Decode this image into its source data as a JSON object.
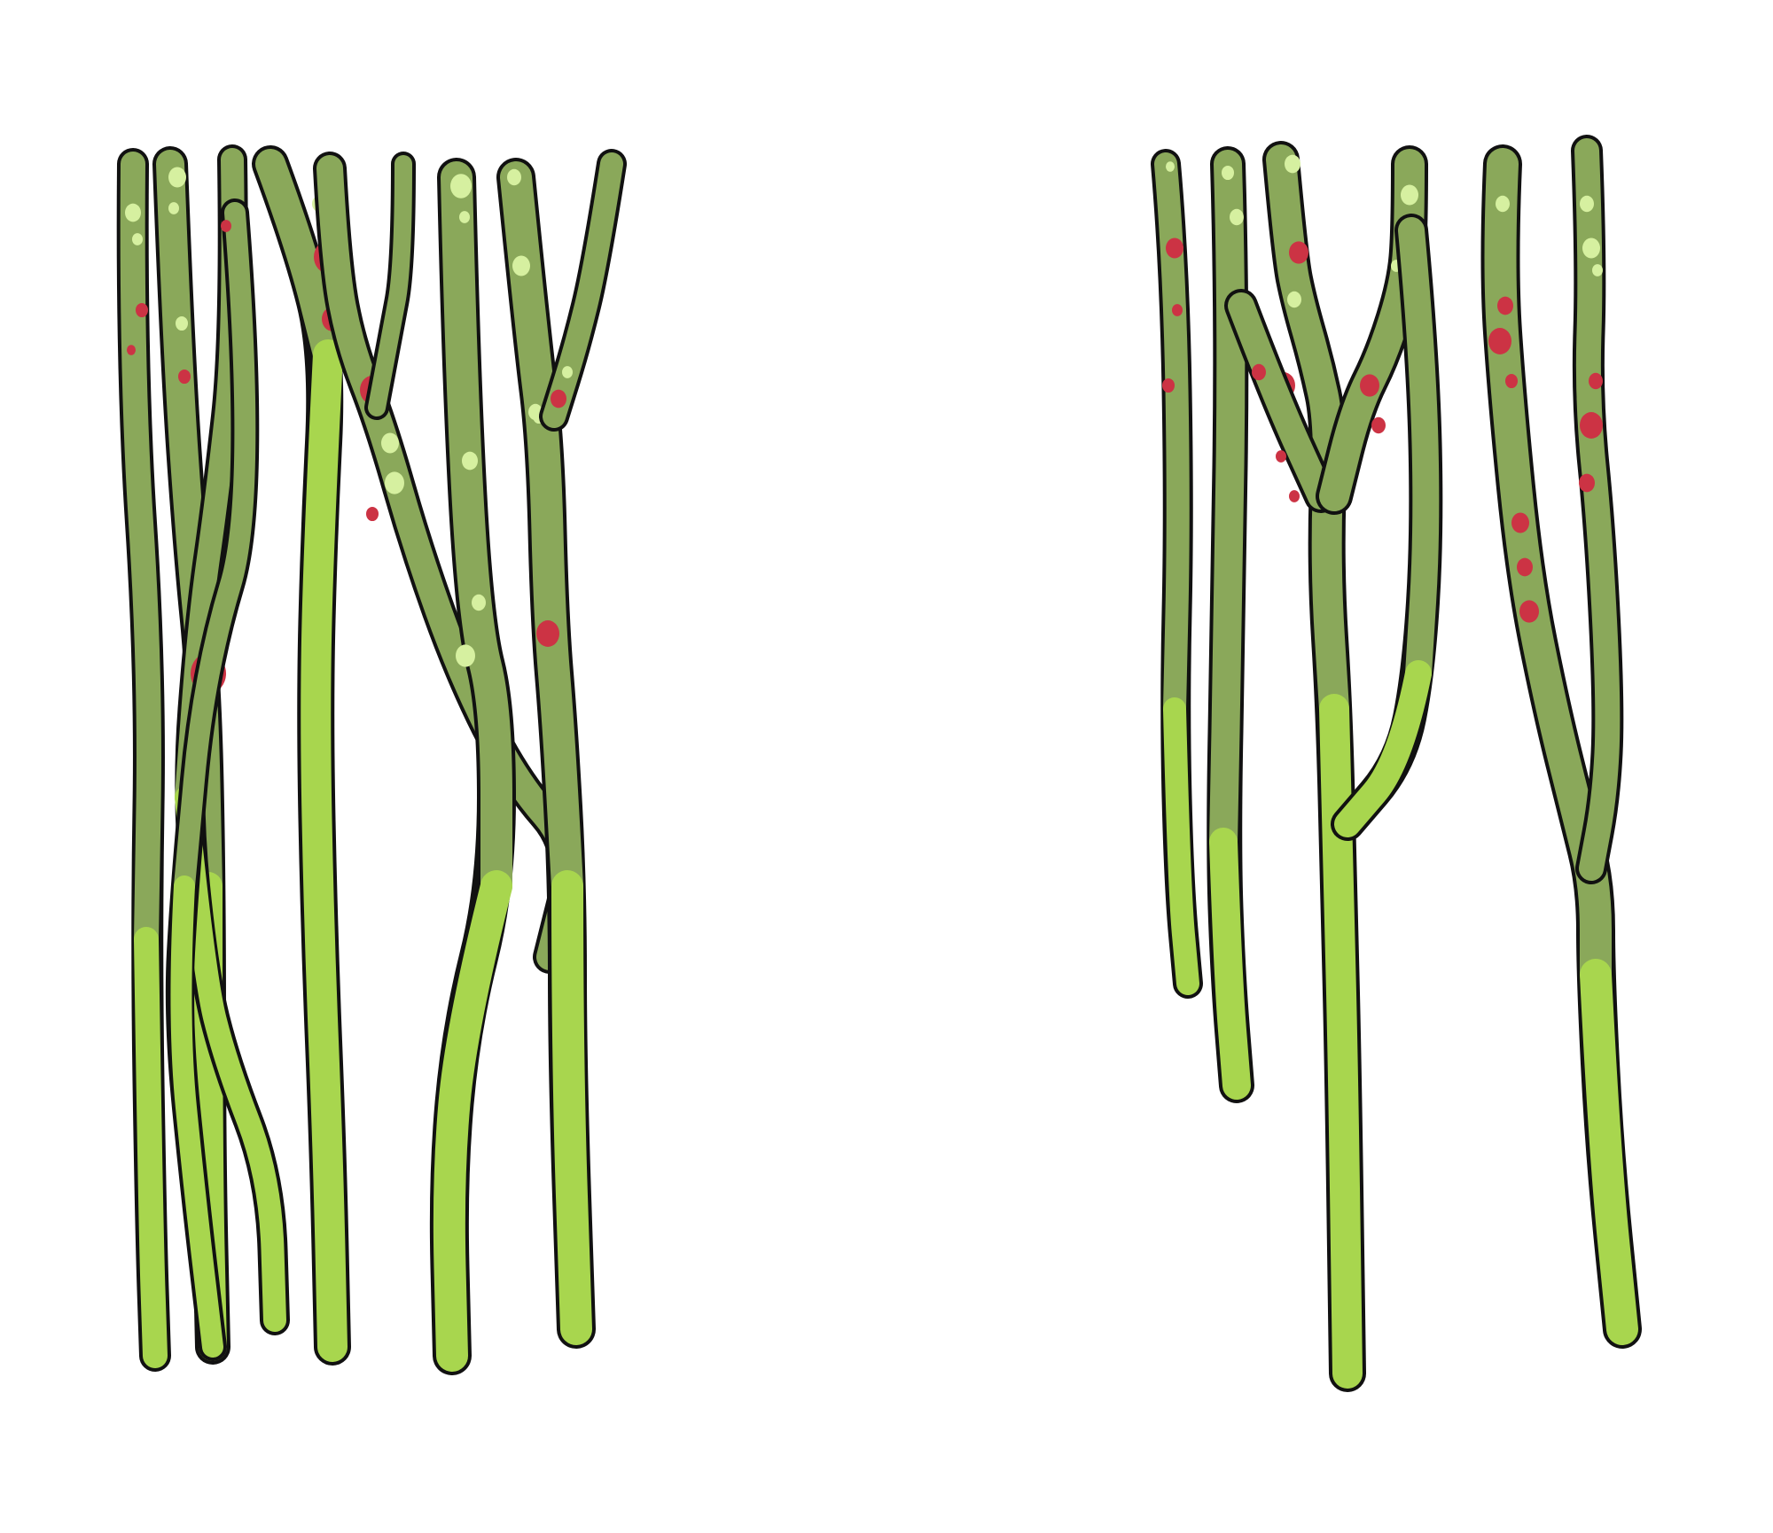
{
  "colors": {
    "background": "#ffffff",
    "outline": "#111111",
    "stem_dark": "#8aa85a",
    "stem_light": "#a8d64e",
    "speck_light": "#d6f0a0",
    "speck_red": "#cc3344"
  },
  "groups": [
    {
      "name": "left-cluster",
      "stem_count": 11
    },
    {
      "name": "right-cluster",
      "stem_count": 7
    }
  ]
}
